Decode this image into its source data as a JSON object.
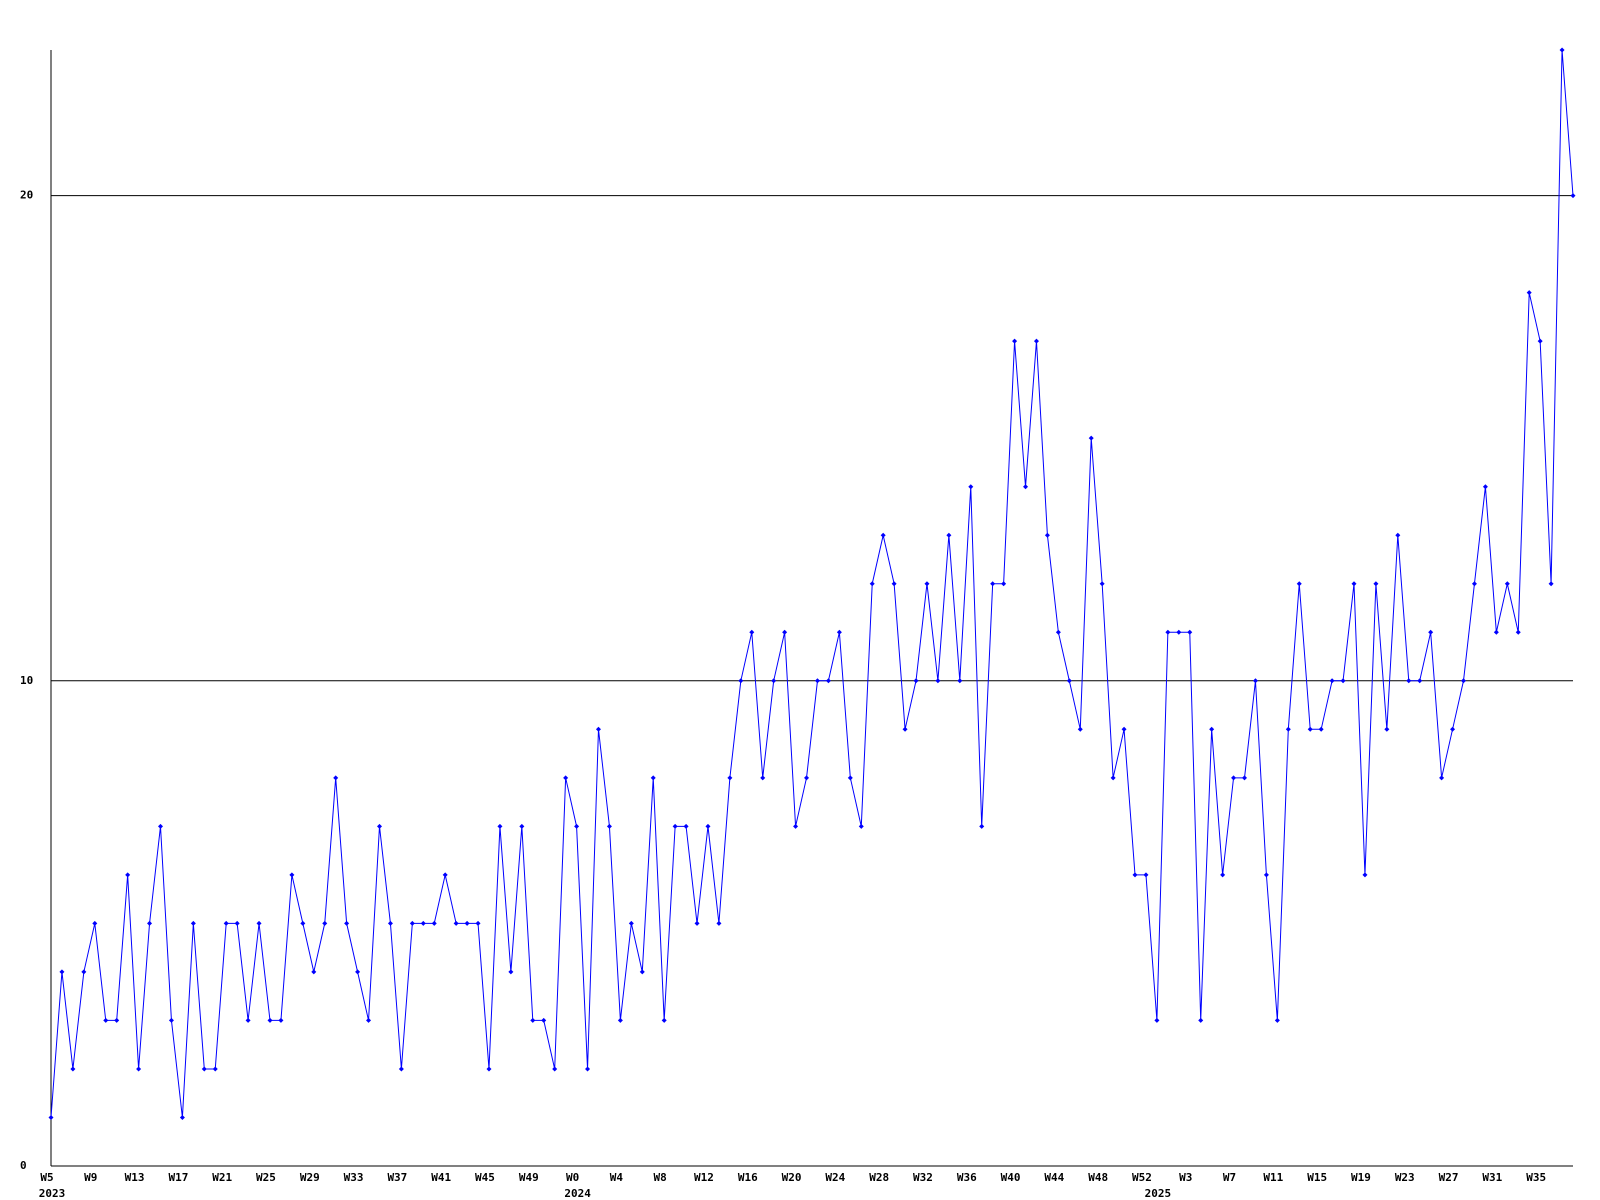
{
  "chart_data": {
    "type": "line",
    "color": "#0000ff",
    "grid": true,
    "ylim": [
      0,
      23
    ],
    "yticks": [
      0,
      10,
      20
    ],
    "categories": [
      "W5",
      null,
      null,
      null,
      "W9",
      null,
      null,
      null,
      "W13",
      null,
      null,
      null,
      "W17",
      null,
      null,
      null,
      "W21",
      null,
      null,
      null,
      "W25",
      null,
      null,
      null,
      "W29",
      null,
      null,
      null,
      "W33",
      null,
      null,
      null,
      "W37",
      null,
      null,
      null,
      "W41",
      null,
      null,
      null,
      "W45",
      null,
      null,
      null,
      "W49",
      null,
      null,
      null,
      "W0",
      null,
      null,
      null,
      "W4",
      null,
      null,
      null,
      "W8",
      null,
      null,
      null,
      "W12",
      null,
      null,
      null,
      "W16",
      null,
      null,
      null,
      "W20",
      null,
      null,
      null,
      "W24",
      null,
      null,
      null,
      "W28",
      null,
      null,
      null,
      "W32",
      null,
      null,
      null,
      "W36",
      null,
      null,
      null,
      "W40",
      null,
      null,
      null,
      "W44",
      null,
      null,
      null,
      "W48",
      null,
      null,
      null,
      "W52",
      null,
      null,
      null,
      "W3",
      null,
      null,
      null,
      "W7",
      null,
      null,
      null,
      "W11",
      null,
      null,
      null,
      "W15",
      null,
      null,
      null,
      "W19",
      null,
      null,
      null,
      "W23",
      null,
      null,
      null,
      "W27",
      null,
      null,
      null,
      "W31",
      null,
      null,
      null,
      "W35",
      null,
      null,
      null
    ],
    "years": [
      "2023",
      null,
      null,
      null,
      null,
      null,
      null,
      null,
      null,
      null,
      null,
      null,
      null,
      null,
      null,
      null,
      null,
      null,
      null,
      null,
      null,
      null,
      null,
      null,
      null,
      null,
      null,
      null,
      null,
      null,
      null,
      null,
      null,
      null,
      null,
      null,
      null,
      null,
      null,
      null,
      null,
      null,
      null,
      null,
      null,
      null,
      null,
      null,
      "2024",
      null,
      null,
      null,
      null,
      null,
      null,
      null,
      null,
      null,
      null,
      null,
      null,
      null,
      null,
      null,
      null,
      null,
      null,
      null,
      null,
      null,
      null,
      null,
      null,
      null,
      null,
      null,
      null,
      null,
      null,
      null,
      null,
      null,
      null,
      null,
      null,
      null,
      null,
      null,
      null,
      null,
      null,
      null,
      null,
      null,
      null,
      null,
      null,
      null,
      null,
      null,
      null,
      "2025",
      null,
      null,
      null,
      null,
      null,
      null,
      null,
      null,
      null,
      null,
      null,
      null,
      null,
      null,
      null,
      null,
      null,
      null,
      null,
      null,
      null,
      null,
      null,
      null,
      null,
      null,
      null,
      null,
      null,
      null,
      null,
      null,
      null,
      null,
      null,
      null,
      null,
      null
    ],
    "values": [
      1,
      4,
      2,
      4,
      5,
      3,
      3,
      6,
      2,
      5,
      7,
      3,
      1,
      5,
      2,
      2,
      5,
      5,
      3,
      5,
      3,
      3,
      6,
      5,
      4,
      5,
      8,
      5,
      4,
      3,
      7,
      5,
      2,
      5,
      5,
      5,
      6,
      5,
      5,
      5,
      2,
      7,
      4,
      7,
      3,
      3,
      2,
      8,
      7,
      2,
      9,
      7,
      3,
      5,
      4,
      8,
      3,
      7,
      7,
      5,
      7,
      5,
      8,
      10,
      11,
      8,
      10,
      11,
      7,
      8,
      10,
      10,
      11,
      8,
      7,
      12,
      13,
      12,
      9,
      10,
      12,
      10,
      13,
      10,
      14,
      7,
      12,
      12,
      17,
      14,
      17,
      13,
      11,
      10,
      9,
      15,
      12,
      8,
      9,
      6,
      6,
      3,
      11,
      11,
      11,
      3,
      9,
      6,
      8,
      8,
      10,
      6,
      3,
      9,
      12,
      9,
      9,
      10,
      10,
      12,
      6,
      12,
      9,
      13,
      10,
      10,
      11,
      8,
      9,
      10,
      12,
      14,
      11,
      12,
      11,
      18,
      17,
      12,
      23,
      20
    ]
  }
}
